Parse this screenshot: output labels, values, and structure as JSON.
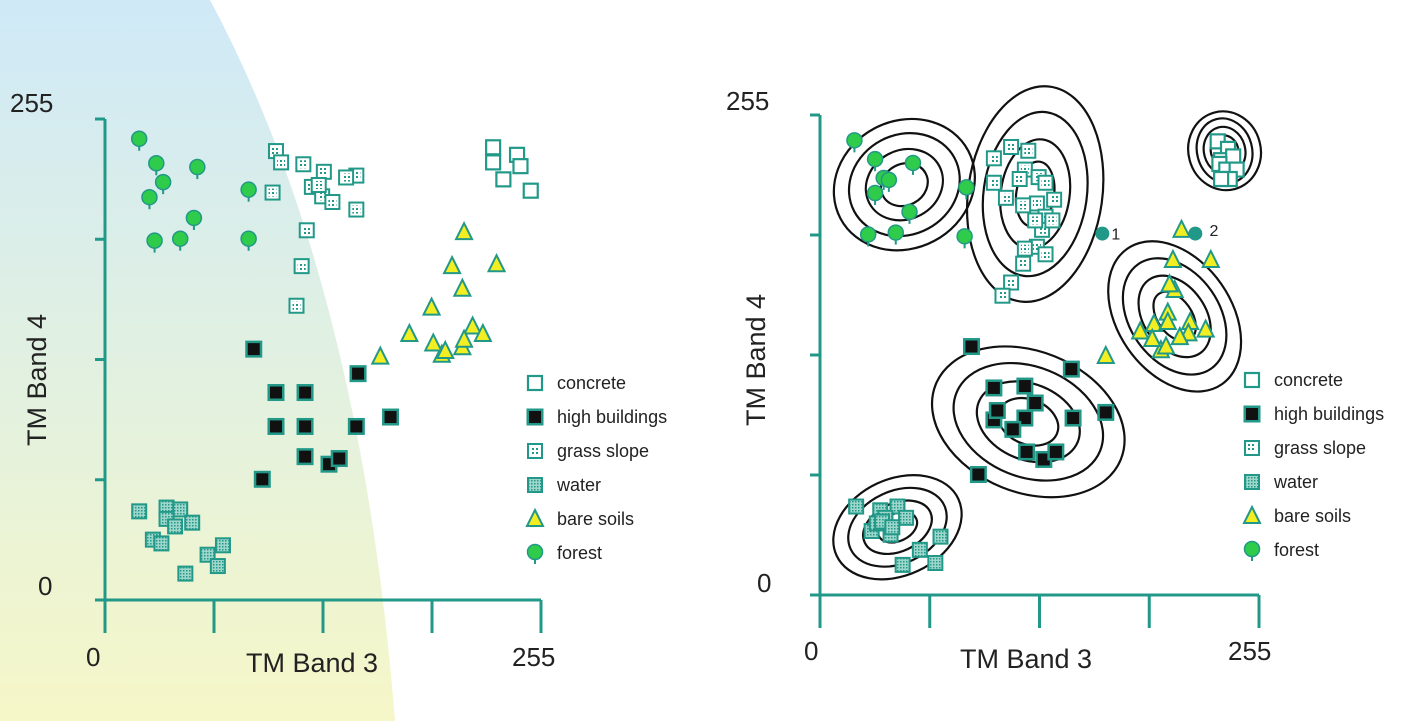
{
  "colors": {
    "axis": "#229988",
    "marker_teal": "#229988",
    "forest_fill": "#2ecc4a",
    "bare_soil_fill": "#f2ee22",
    "high_buildings_fill": "#111111",
    "ellipse": "#111111",
    "bg_blue": "#cfe9f7",
    "bg_yellow": "#f6f7c8"
  },
  "chart_data": [
    {
      "type": "scatter",
      "title": "",
      "xlabel": "TM Band 3",
      "ylabel": "TM Band 4",
      "xlim": [
        0,
        255
      ],
      "ylim": [
        0,
        255
      ],
      "x_tick_labels": [
        "0",
        "255"
      ],
      "y_tick_labels": [
        "0",
        "255"
      ],
      "legend_position": "lower-right",
      "legend": [
        "concrete",
        "high buildings",
        "grass slope",
        "water",
        "bare soils",
        "forest"
      ],
      "series": [
        {
          "name": "concrete",
          "marker": "open-square",
          "points": [
            [
              227,
              240
            ],
            [
              227,
              232
            ],
            [
              241,
              236
            ],
            [
              243,
              230
            ],
            [
              233,
              223
            ],
            [
              249,
              217
            ]
          ]
        },
        {
          "name": "grass slope",
          "marker": "grass-square",
          "points": [
            [
              100,
              238
            ],
            [
              103,
              232
            ],
            [
              98,
              216
            ],
            [
              121,
              219
            ],
            [
              116,
              231
            ],
            [
              128,
              227
            ],
            [
              127,
              214
            ],
            [
              147,
              225
            ],
            [
              147,
              207
            ],
            [
              133,
              211
            ],
            [
              118,
              196
            ],
            [
              115,
              177
            ],
            [
              112,
              156
            ],
            [
              141,
              224
            ],
            [
              125,
              220
            ]
          ]
        },
        {
          "name": "high buildings",
          "marker": "filled-square",
          "points": [
            [
              87,
              133
            ],
            [
              100,
              110
            ],
            [
              117,
              110
            ],
            [
              100,
              92
            ],
            [
              117,
              92
            ],
            [
              148,
              120
            ],
            [
              147,
              92
            ],
            [
              167,
              97
            ],
            [
              117,
              76
            ],
            [
              131,
              72
            ],
            [
              137,
              75
            ],
            [
              92,
              64
            ]
          ]
        },
        {
          "name": "water",
          "marker": "water-square",
          "points": [
            [
              20,
              47
            ],
            [
              36,
              49
            ],
            [
              44,
              48
            ],
            [
              51,
              41
            ],
            [
              36,
              43
            ],
            [
              28,
              32
            ],
            [
              33,
              30
            ],
            [
              60,
              24
            ],
            [
              69,
              29
            ],
            [
              47,
              14
            ],
            [
              66,
              18
            ],
            [
              41,
              39
            ]
          ]
        },
        {
          "name": "bare soils",
          "marker": "triangle",
          "points": [
            [
              210,
              195
            ],
            [
              203,
              177
            ],
            [
              229,
              178
            ],
            [
              209,
              165
            ],
            [
              191,
              155
            ],
            [
              215,
              145
            ],
            [
              178,
              141
            ],
            [
              161,
              129
            ],
            [
              197,
              130
            ],
            [
              209,
              134
            ],
            [
              221,
              141
            ],
            [
              192,
              136
            ],
            [
              199,
              132
            ],
            [
              210,
              138
            ]
          ]
        },
        {
          "name": "forest",
          "marker": "forest-pin",
          "points": [
            [
              20,
              244
            ],
            [
              30,
              231
            ],
            [
              34,
              221
            ],
            [
              54,
              229
            ],
            [
              26,
              213
            ],
            [
              52,
              202
            ],
            [
              29,
              190
            ],
            [
              44,
              191
            ],
            [
              84,
              217
            ],
            [
              84,
              191
            ]
          ]
        }
      ]
    },
    {
      "type": "scatter",
      "title": "",
      "xlabel": "TM Band 3",
      "ylabel": "TM Band 4",
      "xlim": [
        0,
        255
      ],
      "ylim": [
        0,
        255
      ],
      "x_tick_labels": [
        "0",
        "255"
      ],
      "y_tick_labels": [
        "0",
        "255"
      ],
      "legend_position": "lower-right",
      "legend": [
        "concrete",
        "high buildings",
        "grass slope",
        "water",
        "bare soils",
        "forest"
      ],
      "annotations": [
        {
          "text": "1",
          "x": 164,
          "y": 192
        },
        {
          "text": "2",
          "x": 221,
          "y": 194
        }
      ],
      "unclassified_points": [
        [
          164,
          192
        ],
        [
          218,
          192
        ]
      ],
      "ellipses": [
        {
          "class": "forest",
          "center": [
            49,
            218
          ],
          "rx": [
            14,
            23,
            33,
            42
          ],
          "ry": [
            12,
            20,
            29,
            37
          ],
          "angle_deg": 28
        },
        {
          "class": "grass slope",
          "center": [
            125,
            213
          ],
          "rx": [
            11,
            20,
            30,
            39
          ],
          "ry": [
            19,
            32,
            48,
            63
          ],
          "angle_deg": -8
        },
        {
          "class": "concrete",
          "center": [
            235,
            236
          ],
          "rx": [
            8,
            12,
            16,
            21
          ],
          "ry": [
            9,
            14,
            19,
            23
          ],
          "angle_deg": 15
        },
        {
          "class": "bare soils",
          "center": [
            206,
            148
          ],
          "rx": [
            16,
            26,
            37,
            48
          ],
          "ry": [
            10,
            18,
            26,
            33
          ],
          "angle_deg": -55
        },
        {
          "class": "high buildings",
          "center": [
            121,
            92
          ],
          "rx": [
            18,
            31,
            45,
            58
          ],
          "ry": [
            13,
            22,
            32,
            41
          ],
          "angle_deg": -22
        },
        {
          "class": "water",
          "center": [
            45,
            36
          ],
          "rx": [
            12,
            21,
            30,
            39
          ],
          "ry": [
            8,
            14,
            21,
            28
          ],
          "angle_deg": 25
        }
      ],
      "series": [
        {
          "name": "concrete",
          "marker": "open-square",
          "points": [
            [
              231,
              241
            ],
            [
              237,
              237
            ],
            [
              233,
              231
            ],
            [
              240,
              233
            ],
            [
              232,
              229
            ],
            [
              236,
              226
            ],
            [
              242,
              226
            ],
            [
              238,
              221
            ],
            [
              233,
              221
            ]
          ]
        },
        {
          "name": "grass slope",
          "marker": "grass-square",
          "points": [
            [
              101,
              232
            ],
            [
              101,
              219
            ],
            [
              111,
              238
            ],
            [
              121,
              236
            ],
            [
              119,
              226
            ],
            [
              116,
              221
            ],
            [
              127,
              222
            ],
            [
              131,
              219
            ],
            [
              126,
              208
            ],
            [
              131,
              201
            ],
            [
              136,
              210
            ],
            [
              108,
              211
            ],
            [
              118,
              207
            ],
            [
              129,
              194
            ],
            [
              135,
              199
            ],
            [
              126,
              185
            ],
            [
              119,
              184
            ],
            [
              118,
              176
            ],
            [
              111,
              166
            ],
            [
              106,
              159
            ],
            [
              131,
              181
            ],
            [
              125,
              199
            ]
          ]
        },
        {
          "name": "high buildings",
          "marker": "filled-square",
          "points": [
            [
              88,
              132
            ],
            [
              101,
              110
            ],
            [
              119,
              111
            ],
            [
              101,
              93
            ],
            [
              119,
              94
            ],
            [
              146,
              120
            ],
            [
              147,
              94
            ],
            [
              166,
              97
            ],
            [
              120,
              76
            ],
            [
              130,
              72
            ],
            [
              137,
              76
            ],
            [
              92,
              64
            ],
            [
              112,
              88
            ],
            [
              125,
              102
            ],
            [
              103,
              98
            ]
          ]
        },
        {
          "name": "water",
          "marker": "water-square",
          "points": [
            [
              21,
              47
            ],
            [
              35,
              45
            ],
            [
              45,
              47
            ],
            [
              50,
              41
            ],
            [
              38,
              41
            ],
            [
              30,
              34
            ],
            [
              41,
              32
            ],
            [
              58,
              24
            ],
            [
              70,
              31
            ],
            [
              48,
              16
            ],
            [
              67,
              17
            ],
            [
              33,
              38
            ],
            [
              36,
              39
            ],
            [
              42,
              36
            ]
          ]
        },
        {
          "name": "bare soils",
          "marker": "triangle",
          "points": [
            [
              210,
              194
            ],
            [
              205,
              178
            ],
            [
              227,
              178
            ],
            [
              206,
              162
            ],
            [
              194,
              144
            ],
            [
              215,
              145
            ],
            [
              186,
              140
            ],
            [
              166,
              127
            ],
            [
              198,
              130
            ],
            [
              214,
              139
            ],
            [
              224,
              141
            ],
            [
              193,
              136
            ],
            [
              201,
              132
            ],
            [
              209,
              137
            ],
            [
              202,
              150
            ],
            [
              203,
              165
            ],
            [
              202,
              145
            ]
          ]
        },
        {
          "name": "forest",
          "marker": "forest-pin",
          "points": [
            [
              20,
              241
            ],
            [
              32,
              231
            ],
            [
              37,
              221
            ],
            [
              54,
              229
            ],
            [
              32,
              213
            ],
            [
              52,
              203
            ],
            [
              28,
              191
            ],
            [
              44,
              192
            ],
            [
              85,
              216
            ],
            [
              84,
              190
            ],
            [
              40,
              220
            ]
          ]
        }
      ]
    }
  ]
}
